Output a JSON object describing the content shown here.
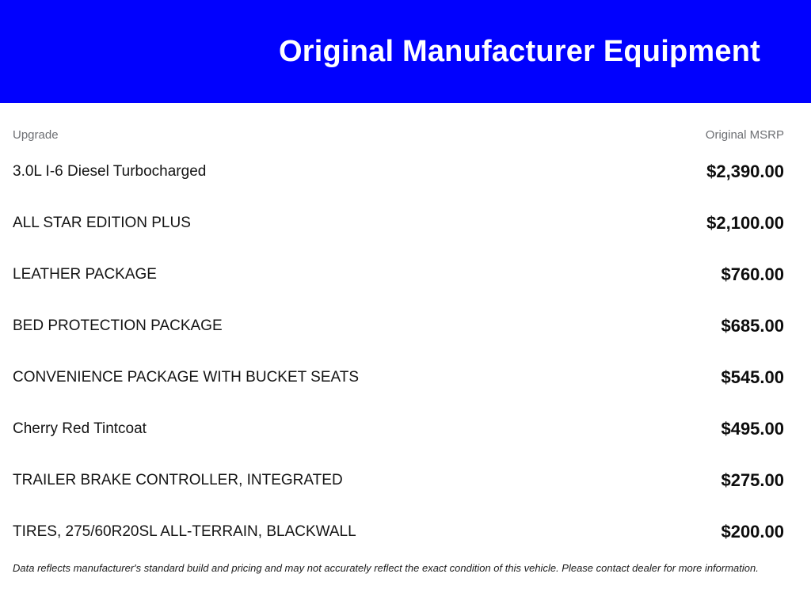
{
  "header": {
    "title": "Original Manufacturer Equipment",
    "background_color": "#0101fe",
    "text_color": "#ffffff"
  },
  "table": {
    "columns": {
      "upgrade": "Upgrade",
      "msrp": "Original MSRP"
    },
    "rows": [
      {
        "name": "3.0L I-6 Diesel Turbocharged",
        "price": "$2,390.00"
      },
      {
        "name": "ALL STAR EDITION PLUS",
        "price": "$2,100.00"
      },
      {
        "name": "LEATHER PACKAGE",
        "price": "$760.00"
      },
      {
        "name": "BED PROTECTION PACKAGE",
        "price": "$685.00"
      },
      {
        "name": "CONVENIENCE PACKAGE WITH BUCKET SEATS",
        "price": "$545.00"
      },
      {
        "name": "Cherry Red Tintcoat",
        "price": "$495.00"
      },
      {
        "name": "TRAILER BRAKE CONTROLLER, INTEGRATED",
        "price": "$275.00"
      },
      {
        "name": "TIRES, 275/60R20SL ALL-TERRAIN, BLACKWALL",
        "price": "$200.00"
      }
    ]
  },
  "disclaimer": "Data reflects manufacturer's standard build and pricing and may not accurately reflect the exact condition of this vehicle. Please contact dealer for more information."
}
